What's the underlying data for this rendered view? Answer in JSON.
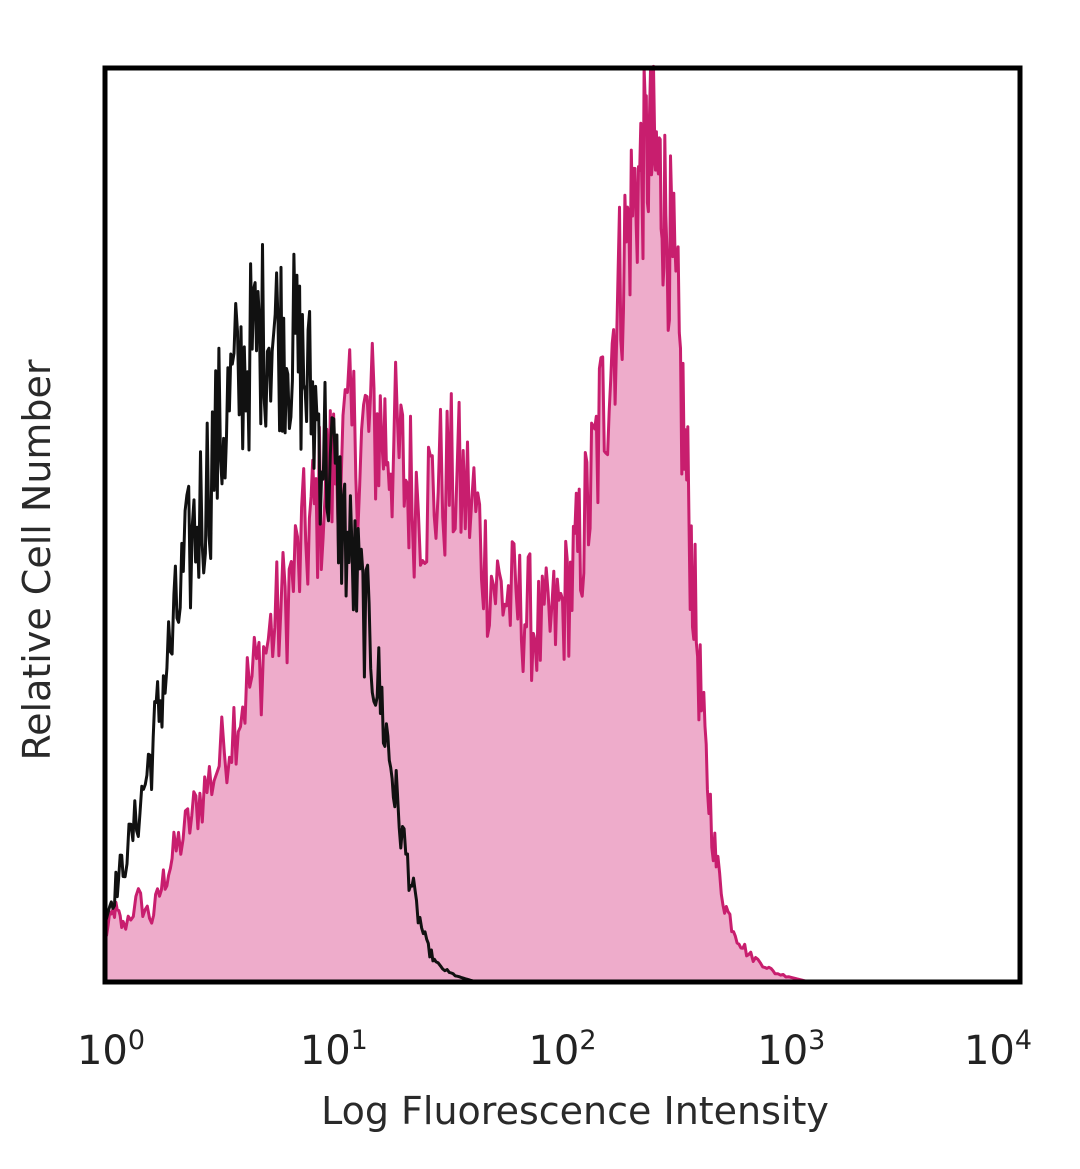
{
  "chart_data": {
    "type": "area",
    "xlabel": "Log Fluorescence Intensity",
    "ylabel": "Relative Cell Number",
    "xscale": "log",
    "xlim": [
      1,
      10000
    ],
    "ylim": [
      0,
      100
    ],
    "grid": false,
    "legend": "none",
    "x_ticks": [
      {
        "base": "10",
        "exp": "0"
      },
      {
        "base": "10",
        "exp": "1"
      },
      {
        "base": "10",
        "exp": "2"
      },
      {
        "base": "10",
        "exp": "3"
      },
      {
        "base": "10",
        "exp": "4"
      }
    ],
    "series": [
      {
        "style": "filled",
        "color": "#c81e6e",
        "fill": "#eeaccb",
        "points": [
          [
            1.0,
            5
          ],
          [
            1.1,
            8
          ],
          [
            1.2,
            6
          ],
          [
            1.4,
            9
          ],
          [
            1.6,
            7
          ],
          [
            1.8,
            11
          ],
          [
            2.0,
            14
          ],
          [
            2.3,
            17
          ],
          [
            2.6,
            20
          ],
          [
            3.0,
            23
          ],
          [
            3.5,
            27
          ],
          [
            4.0,
            31
          ],
          [
            4.6,
            34
          ],
          [
            5.3,
            38
          ],
          [
            6.0,
            41
          ],
          [
            6.8,
            45
          ],
          [
            7.7,
            49
          ],
          [
            8.5,
            52
          ],
          [
            9.5,
            55
          ],
          [
            10.5,
            57
          ],
          [
            12.0,
            59
          ],
          [
            13.5,
            60
          ],
          [
            15.0,
            61
          ],
          [
            16.5,
            60
          ],
          [
            18.0,
            59
          ],
          [
            20.0,
            56
          ],
          [
            22.0,
            54
          ],
          [
            25.0,
            53
          ],
          [
            28.0,
            54
          ],
          [
            32.0,
            55
          ],
          [
            36.0,
            54
          ],
          [
            41.0,
            52
          ],
          [
            46.0,
            46
          ],
          [
            52.0,
            43
          ],
          [
            58.0,
            42
          ],
          [
            65.0,
            41
          ],
          [
            72.0,
            40
          ],
          [
            80.0,
            38
          ],
          [
            90.0,
            39
          ],
          [
            100.0,
            41
          ],
          [
            110.0,
            44
          ],
          [
            120.0,
            48
          ],
          [
            132.0,
            53
          ],
          [
            145.0,
            60
          ],
          [
            160.0,
            68
          ],
          [
            175.0,
            75
          ],
          [
            190.0,
            81
          ],
          [
            205.0,
            86
          ],
          [
            220.0,
            88
          ],
          [
            235.0,
            91
          ],
          [
            250.0,
            90
          ],
          [
            265.0,
            88
          ],
          [
            280.0,
            85
          ],
          [
            300.0,
            79
          ],
          [
            320.0,
            70
          ],
          [
            345.0,
            57
          ],
          [
            370.0,
            45
          ],
          [
            400.0,
            32
          ],
          [
            430.0,
            22
          ],
          [
            470.0,
            13
          ],
          [
            520.0,
            8
          ],
          [
            580.0,
            5
          ],
          [
            650.0,
            3
          ],
          [
            750.0,
            2
          ],
          [
            850.0,
            1
          ],
          [
            1000.0,
            0.5
          ],
          [
            1200.0,
            0
          ]
        ]
      },
      {
        "style": "line",
        "color": "#111111",
        "points": [
          [
            1.0,
            7
          ],
          [
            1.1,
            10
          ],
          [
            1.2,
            13
          ],
          [
            1.35,
            17
          ],
          [
            1.5,
            22
          ],
          [
            1.65,
            27
          ],
          [
            1.8,
            33
          ],
          [
            2.0,
            38
          ],
          [
            2.2,
            44
          ],
          [
            2.45,
            49
          ],
          [
            2.7,
            53
          ],
          [
            3.0,
            58
          ],
          [
            3.3,
            61
          ],
          [
            3.6,
            64
          ],
          [
            4.0,
            67
          ],
          [
            4.4,
            69
          ],
          [
            4.8,
            71
          ],
          [
            5.3,
            72
          ],
          [
            5.8,
            71
          ],
          [
            6.3,
            70
          ],
          [
            6.9,
            69
          ],
          [
            7.5,
            66
          ],
          [
            8.2,
            63
          ],
          [
            9.0,
            59
          ],
          [
            10.0,
            55
          ],
          [
            11.0,
            50
          ],
          [
            12.0,
            46
          ],
          [
            13.2,
            42
          ],
          [
            14.5,
            37
          ],
          [
            16.0,
            31
          ],
          [
            17.5,
            25
          ],
          [
            19.0,
            19
          ],
          [
            21.0,
            13
          ],
          [
            23.0,
            8
          ],
          [
            25.5,
            4
          ],
          [
            28.0,
            2
          ],
          [
            32.0,
            1
          ],
          [
            36.0,
            0.5
          ],
          [
            42.0,
            0
          ]
        ]
      }
    ]
  }
}
